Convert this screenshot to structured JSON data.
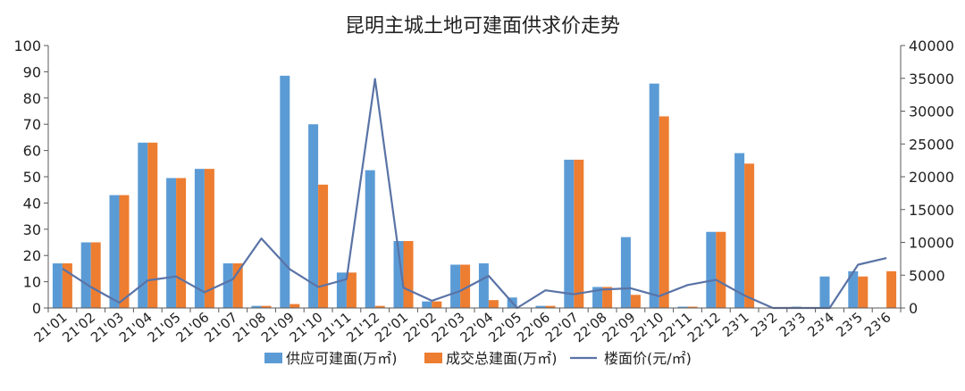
{
  "chart_data": {
    "type": "bar",
    "title": "昆明主城土地可建面供求价走势",
    "categories": [
      "21'01",
      "21'02",
      "21'03",
      "21'04",
      "21'05",
      "21'06",
      "21'07",
      "21'08",
      "21'09",
      "21'10",
      "21'11",
      "21'12",
      "22'01",
      "22'02",
      "22'03",
      "22'04",
      "22'05",
      "22'06",
      "22'07",
      "22'08",
      "22'09",
      "22'10",
      "22'11",
      "22'12",
      "23'1",
      "23'2",
      "23'3",
      "23'4",
      "23'5",
      "23'6"
    ],
    "series": [
      {
        "name": "供应可建面(万㎡)",
        "type": "bar",
        "axis": "left",
        "color": "#5b9bd5",
        "values": [
          17,
          25,
          43,
          63,
          49.5,
          53,
          17,
          0.8,
          88.5,
          70,
          13.5,
          52.5,
          25.5,
          2.5,
          16.5,
          17,
          4,
          0.8,
          56.5,
          8,
          27,
          85.5,
          0.5,
          29,
          59,
          0,
          0.5,
          12,
          14,
          0
        ]
      },
      {
        "name": "成交总建面(万㎡)",
        "type": "bar",
        "axis": "left",
        "color": "#ed7d31",
        "values": [
          17,
          25,
          43,
          63,
          49.5,
          53,
          17,
          0.8,
          1.5,
          47,
          13.5,
          0.8,
          25.5,
          2.5,
          16.5,
          3,
          0,
          0.8,
          56.5,
          8,
          5,
          73,
          0.5,
          29,
          55,
          0,
          0,
          0,
          12,
          14
        ]
      },
      {
        "name": "楼面价(元/㎡)",
        "type": "line",
        "axis": "right",
        "color": "#5a73a6",
        "values": [
          6000,
          3200,
          800,
          4200,
          4800,
          2400,
          4400,
          10600,
          5900,
          3200,
          4400,
          34900,
          3100,
          1100,
          2600,
          4900,
          0,
          2700,
          2100,
          2800,
          3000,
          1800,
          3500,
          4300,
          1900,
          0,
          0,
          0,
          6600,
          7600
        ]
      }
    ],
    "yleft": {
      "ylim": [
        0,
        100
      ],
      "ticks": [
        0,
        10,
        20,
        30,
        40,
        50,
        60,
        70,
        80,
        90,
        100
      ]
    },
    "yright": {
      "ylim": [
        0,
        40000
      ],
      "ticks": [
        0,
        5000,
        10000,
        15000,
        20000,
        25000,
        30000,
        35000,
        40000
      ]
    },
    "legend": "bottom",
    "grid": false
  }
}
